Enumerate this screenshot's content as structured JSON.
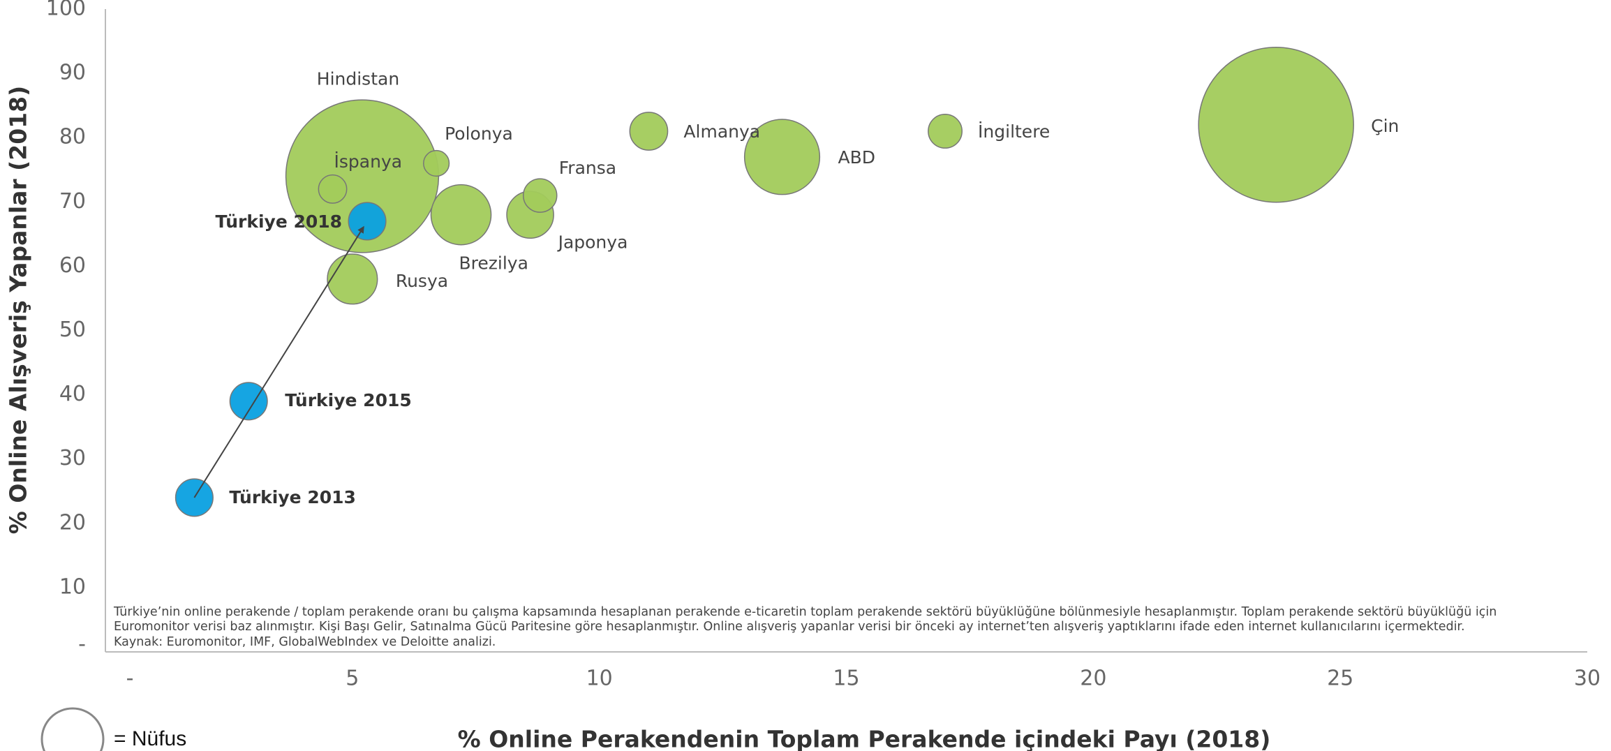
{
  "chart_data": {
    "type": "bubble",
    "xlabel": "% Online Perakendenin Toplam Perakende içindeki Payı (2018)",
    "ylabel": "% Online Alışveriş Yapanlar (2018)",
    "xlim": [
      0,
      30
    ],
    "ylim": [
      0,
      100
    ],
    "xticks": [
      {
        "value": 0,
        "label": "-"
      },
      5,
      10,
      15,
      20,
      25,
      30
    ],
    "yticks": [
      {
        "value": 0,
        "label": "-"
      },
      10,
      20,
      30,
      40,
      50,
      60,
      70,
      80,
      90,
      100
    ],
    "size_legend": "= Nüfus",
    "notes": [
      "Türkiye’nin online perakende / toplam perakende oranı bu çalışma kapsamında hesaplanan perakende e-ticaretin toplam perakende sektörü büyüklüğüne bölünmesiyle hesaplanmıştır. Toplam perakende sektörü büyüklüğü için",
      "Euromonitor verisi baz alınmıştır. Kişi Başı Gelir, Satınalma Gücü Paritesine göre hesaplanmıştır. Online alışveriş yapanlar verisi bir önceki ay internet’ten alışveriş yaptıklarını ifade eden internet kullanıcılarını içermektedir.",
      "Kaynak: Euromonitor, IMF, GlobalWebIndex ve Deloitte analizi."
    ],
    "series": [
      {
        "color": "#a2cb5b",
        "labels": [
          "Çin",
          "Hindistan",
          "ABD",
          "Brezilya",
          "Rusya",
          "Japonya",
          "Almanya",
          "İngiltere",
          "Fransa",
          "İspanya",
          "Polonya"
        ],
        "x": [
          23.7,
          5.2,
          13.7,
          7.2,
          5.0,
          8.6,
          11.0,
          17.0,
          8.8,
          4.6,
          6.7
        ],
        "y": [
          82,
          74,
          77,
          68,
          58,
          68,
          81,
          81,
          71,
          72,
          76
        ],
        "sizes": [
          1390,
          1350,
          327,
          209,
          145,
          127,
          83,
          66,
          65,
          46,
          38
        ]
      },
      {
        "color": "#0aa0e0",
        "labels": [
          "Türkiye 2018",
          "Türkiye 2015",
          "Türkiye 2013"
        ],
        "x": [
          5.3,
          2.9,
          1.8
        ],
        "y": [
          67,
          39,
          24
        ],
        "sizes": [
          81,
          81,
          81
        ]
      }
    ]
  }
}
